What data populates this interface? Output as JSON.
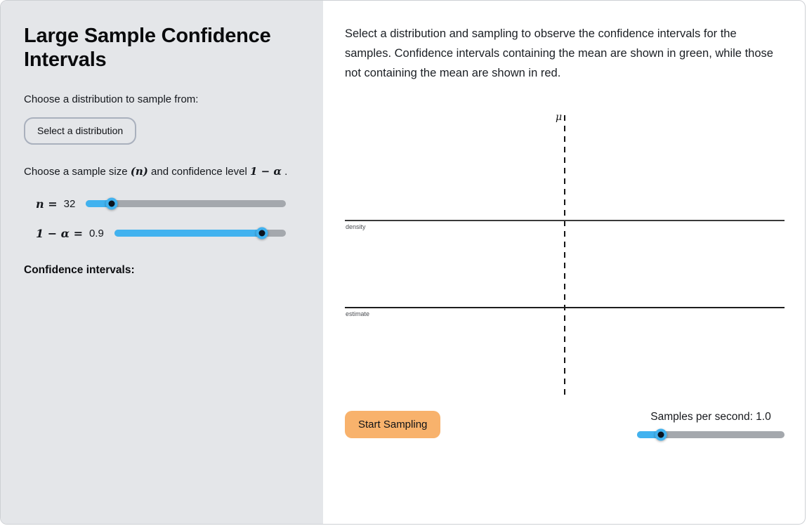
{
  "sidebar": {
    "title": "Large Sample Confidence Intervals",
    "choose_distribution_label": "Choose a distribution to sample from:",
    "select_distribution_button": "Select a distribution",
    "sample_size_sentence": {
      "part1": "Choose a sample size ",
      "math_n": "(n)",
      "part2": " and confidence level ",
      "math_alpha": "1 − α",
      "part3": " ."
    },
    "n_slider": {
      "label_math": "n =",
      "value": "32",
      "fill_percent": 13
    },
    "alpha_slider": {
      "label_math": "1 − α =",
      "value": "0.9",
      "fill_percent": 86
    },
    "confidence_intervals_label": "Confidence intervals:"
  },
  "main": {
    "description": "Select a distribution and sampling to observe the confidence intervals for the samples. Confidence intervals containing the mean are shown in green, while those not containing the mean are shown in red.",
    "plot": {
      "mu_label": "μ",
      "density_axis_label": "density",
      "estimate_axis_label": "estimate"
    },
    "start_sampling_button": "Start Sampling",
    "samples_slider": {
      "label": "Samples per second: 1.0",
      "fill_percent": 16
    }
  },
  "colors": {
    "sidebar_bg": "#e4e6e9",
    "main_bg": "#ffffff",
    "slider_fill_blue": "#41b2ef",
    "slider_track_gray": "#a4a8ad",
    "slider_knob_dark": "#0b141f",
    "button_orange": "#f8b26c",
    "ci_green_mentioned": "green",
    "ci_red_mentioned": "red"
  }
}
